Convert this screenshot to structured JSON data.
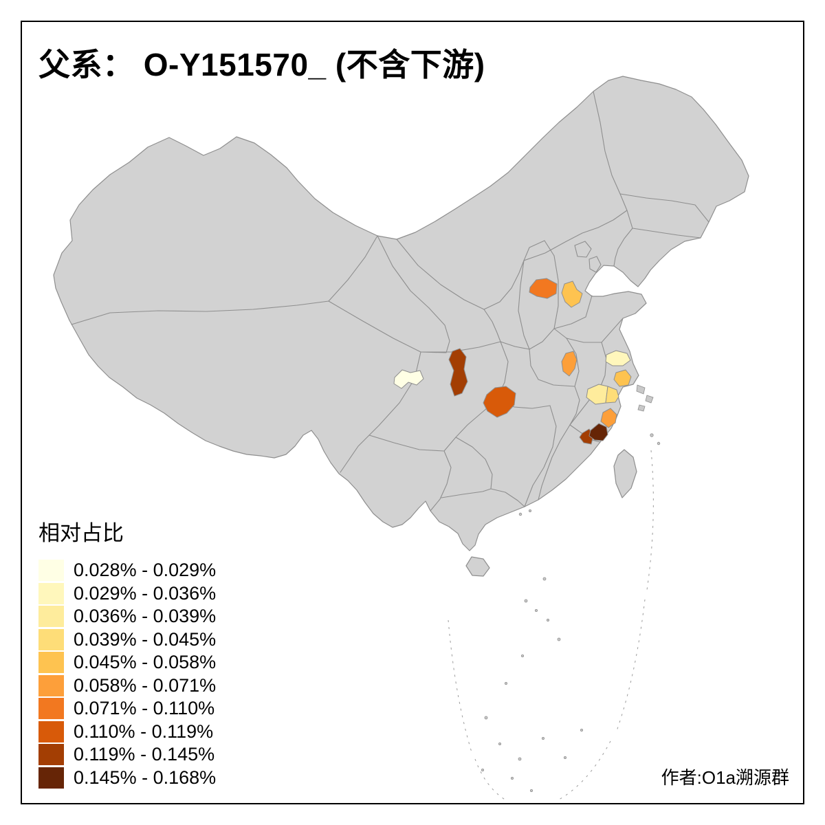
{
  "page": {
    "background": "#FFFFFF",
    "frame_color": "#000000"
  },
  "title": {
    "text": "父系： O-Y151570_ (不含下游)"
  },
  "legend": {
    "title": "相对占比",
    "classes": [
      {
        "label": "0.028% - 0.029%",
        "color": "#FFFFE5"
      },
      {
        "label": "0.029% - 0.036%",
        "color": "#FFF7BC"
      },
      {
        "label": "0.036% - 0.039%",
        "color": "#FEEC9C"
      },
      {
        "label": "0.039% - 0.045%",
        "color": "#FEDD78"
      },
      {
        "label": "0.045% - 0.058%",
        "color": "#FEC350"
      },
      {
        "label": "0.058% - 0.071%",
        "color": "#FD9F3A"
      },
      {
        "label": "0.071% - 0.110%",
        "color": "#F27820"
      },
      {
        "label": "0.110% - 0.119%",
        "color": "#D85A09"
      },
      {
        "label": "0.119% - 0.145%",
        "color": "#A33E03"
      },
      {
        "label": "0.145% - 0.168%",
        "color": "#662506"
      }
    ]
  },
  "attribution": {
    "text": "作者:O1a溯源群"
  },
  "map": {
    "base_fill": "#D2D2D2",
    "border_color": "#8E8E8E",
    "islet_fill": "#C9C9C9",
    "dash_color": "#9B9B9B",
    "regions": [
      {
        "id": "region-north-1",
        "class_index": 6
      },
      {
        "id": "region-north-2",
        "class_index": 4
      },
      {
        "id": "region-west-1",
        "class_index": 0
      },
      {
        "id": "region-central-1",
        "class_index": 8
      },
      {
        "id": "region-central-2",
        "class_index": 7
      },
      {
        "id": "region-east-1",
        "class_index": 5
      },
      {
        "id": "region-east-2",
        "class_index": 1
      },
      {
        "id": "region-east-3",
        "class_index": 4
      },
      {
        "id": "region-east-4",
        "class_index": 2
      },
      {
        "id": "region-east-5",
        "class_index": 3
      },
      {
        "id": "region-east-6",
        "class_index": 5
      },
      {
        "id": "region-southeast-1",
        "class_index": 8
      },
      {
        "id": "region-southeast-2",
        "class_index": 9
      }
    ]
  }
}
